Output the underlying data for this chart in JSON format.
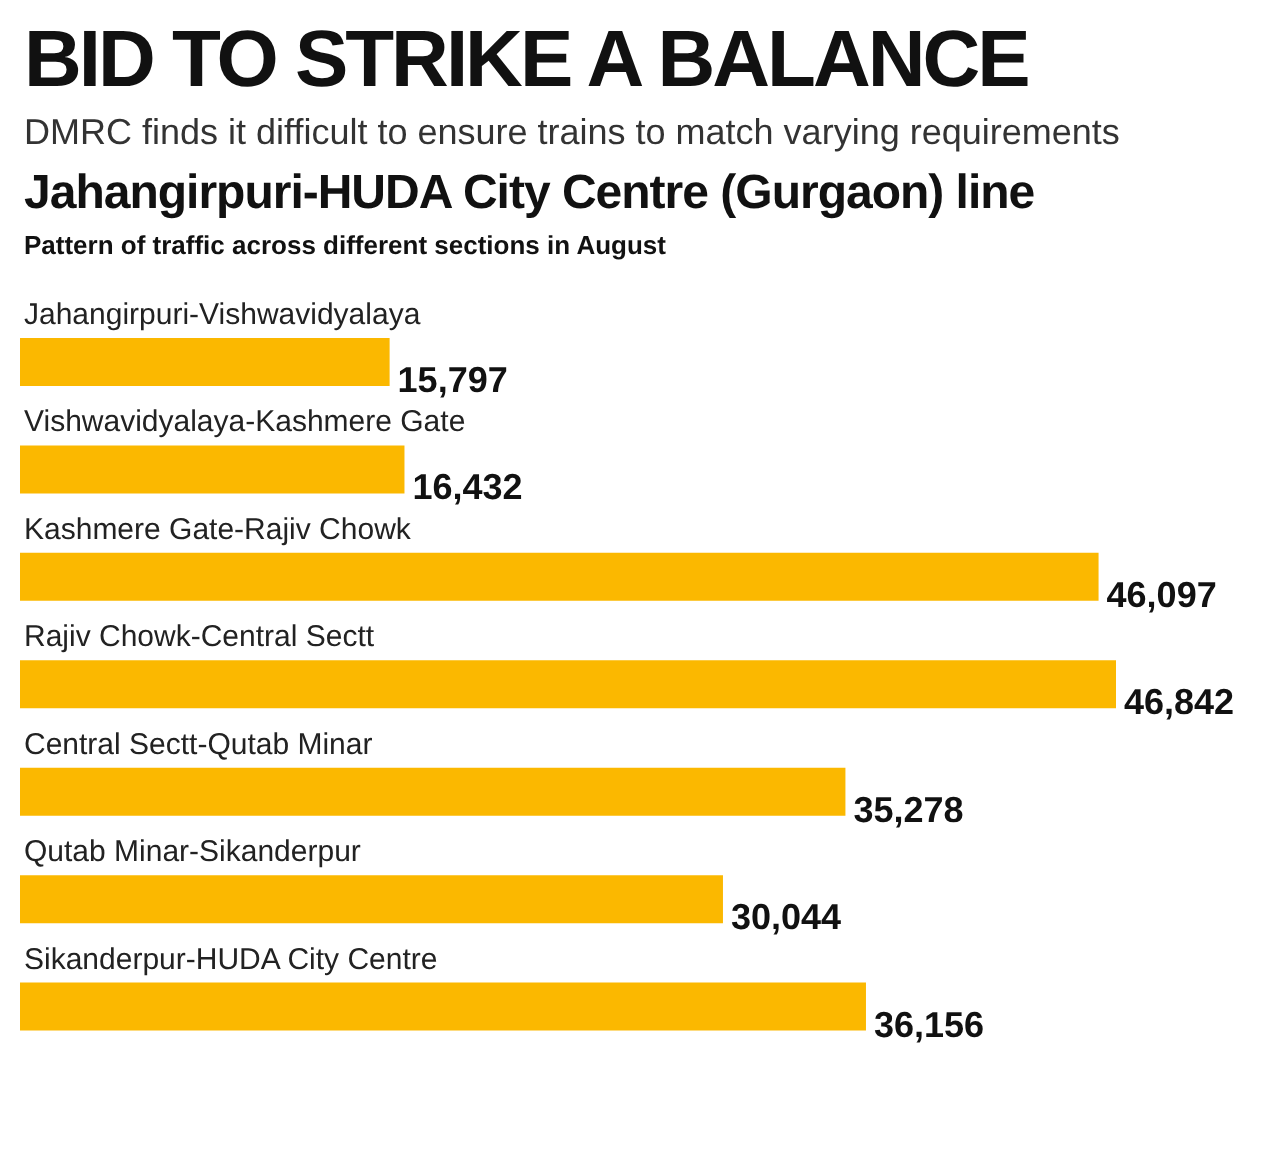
{
  "chart_data": {
    "type": "bar",
    "orientation": "horizontal",
    "title": "BID TO STRIKE A BALANCE",
    "subtitle": "DMRC finds it difficult to ensure trains to match varying requirements",
    "annotations": [
      "Jahangirpuri-HUDA City Centre (Gurgaon) line",
      "Pattern of traffic across different sections in August"
    ],
    "categories": [
      "Jahangirpuri-Vishwavidyalaya",
      "Vishwavidyalaya-Kashmere Gate",
      "Kashmere Gate-Rajiv Chowk",
      "Rajiv Chowk-Central Sectt",
      "Central Sectt-Qutab Minar",
      "Qutab Minar-Sikanderpur",
      "Sikanderpur-HUDA City Centre"
    ],
    "values": [
      15797,
      16432,
      46097,
      46842,
      35278,
      30044,
      36156
    ],
    "value_labels": [
      "15,797",
      "16,432",
      "46,097",
      "46,842",
      "35,278",
      "30,044",
      "36,156"
    ],
    "color": "#fbb800"
  }
}
